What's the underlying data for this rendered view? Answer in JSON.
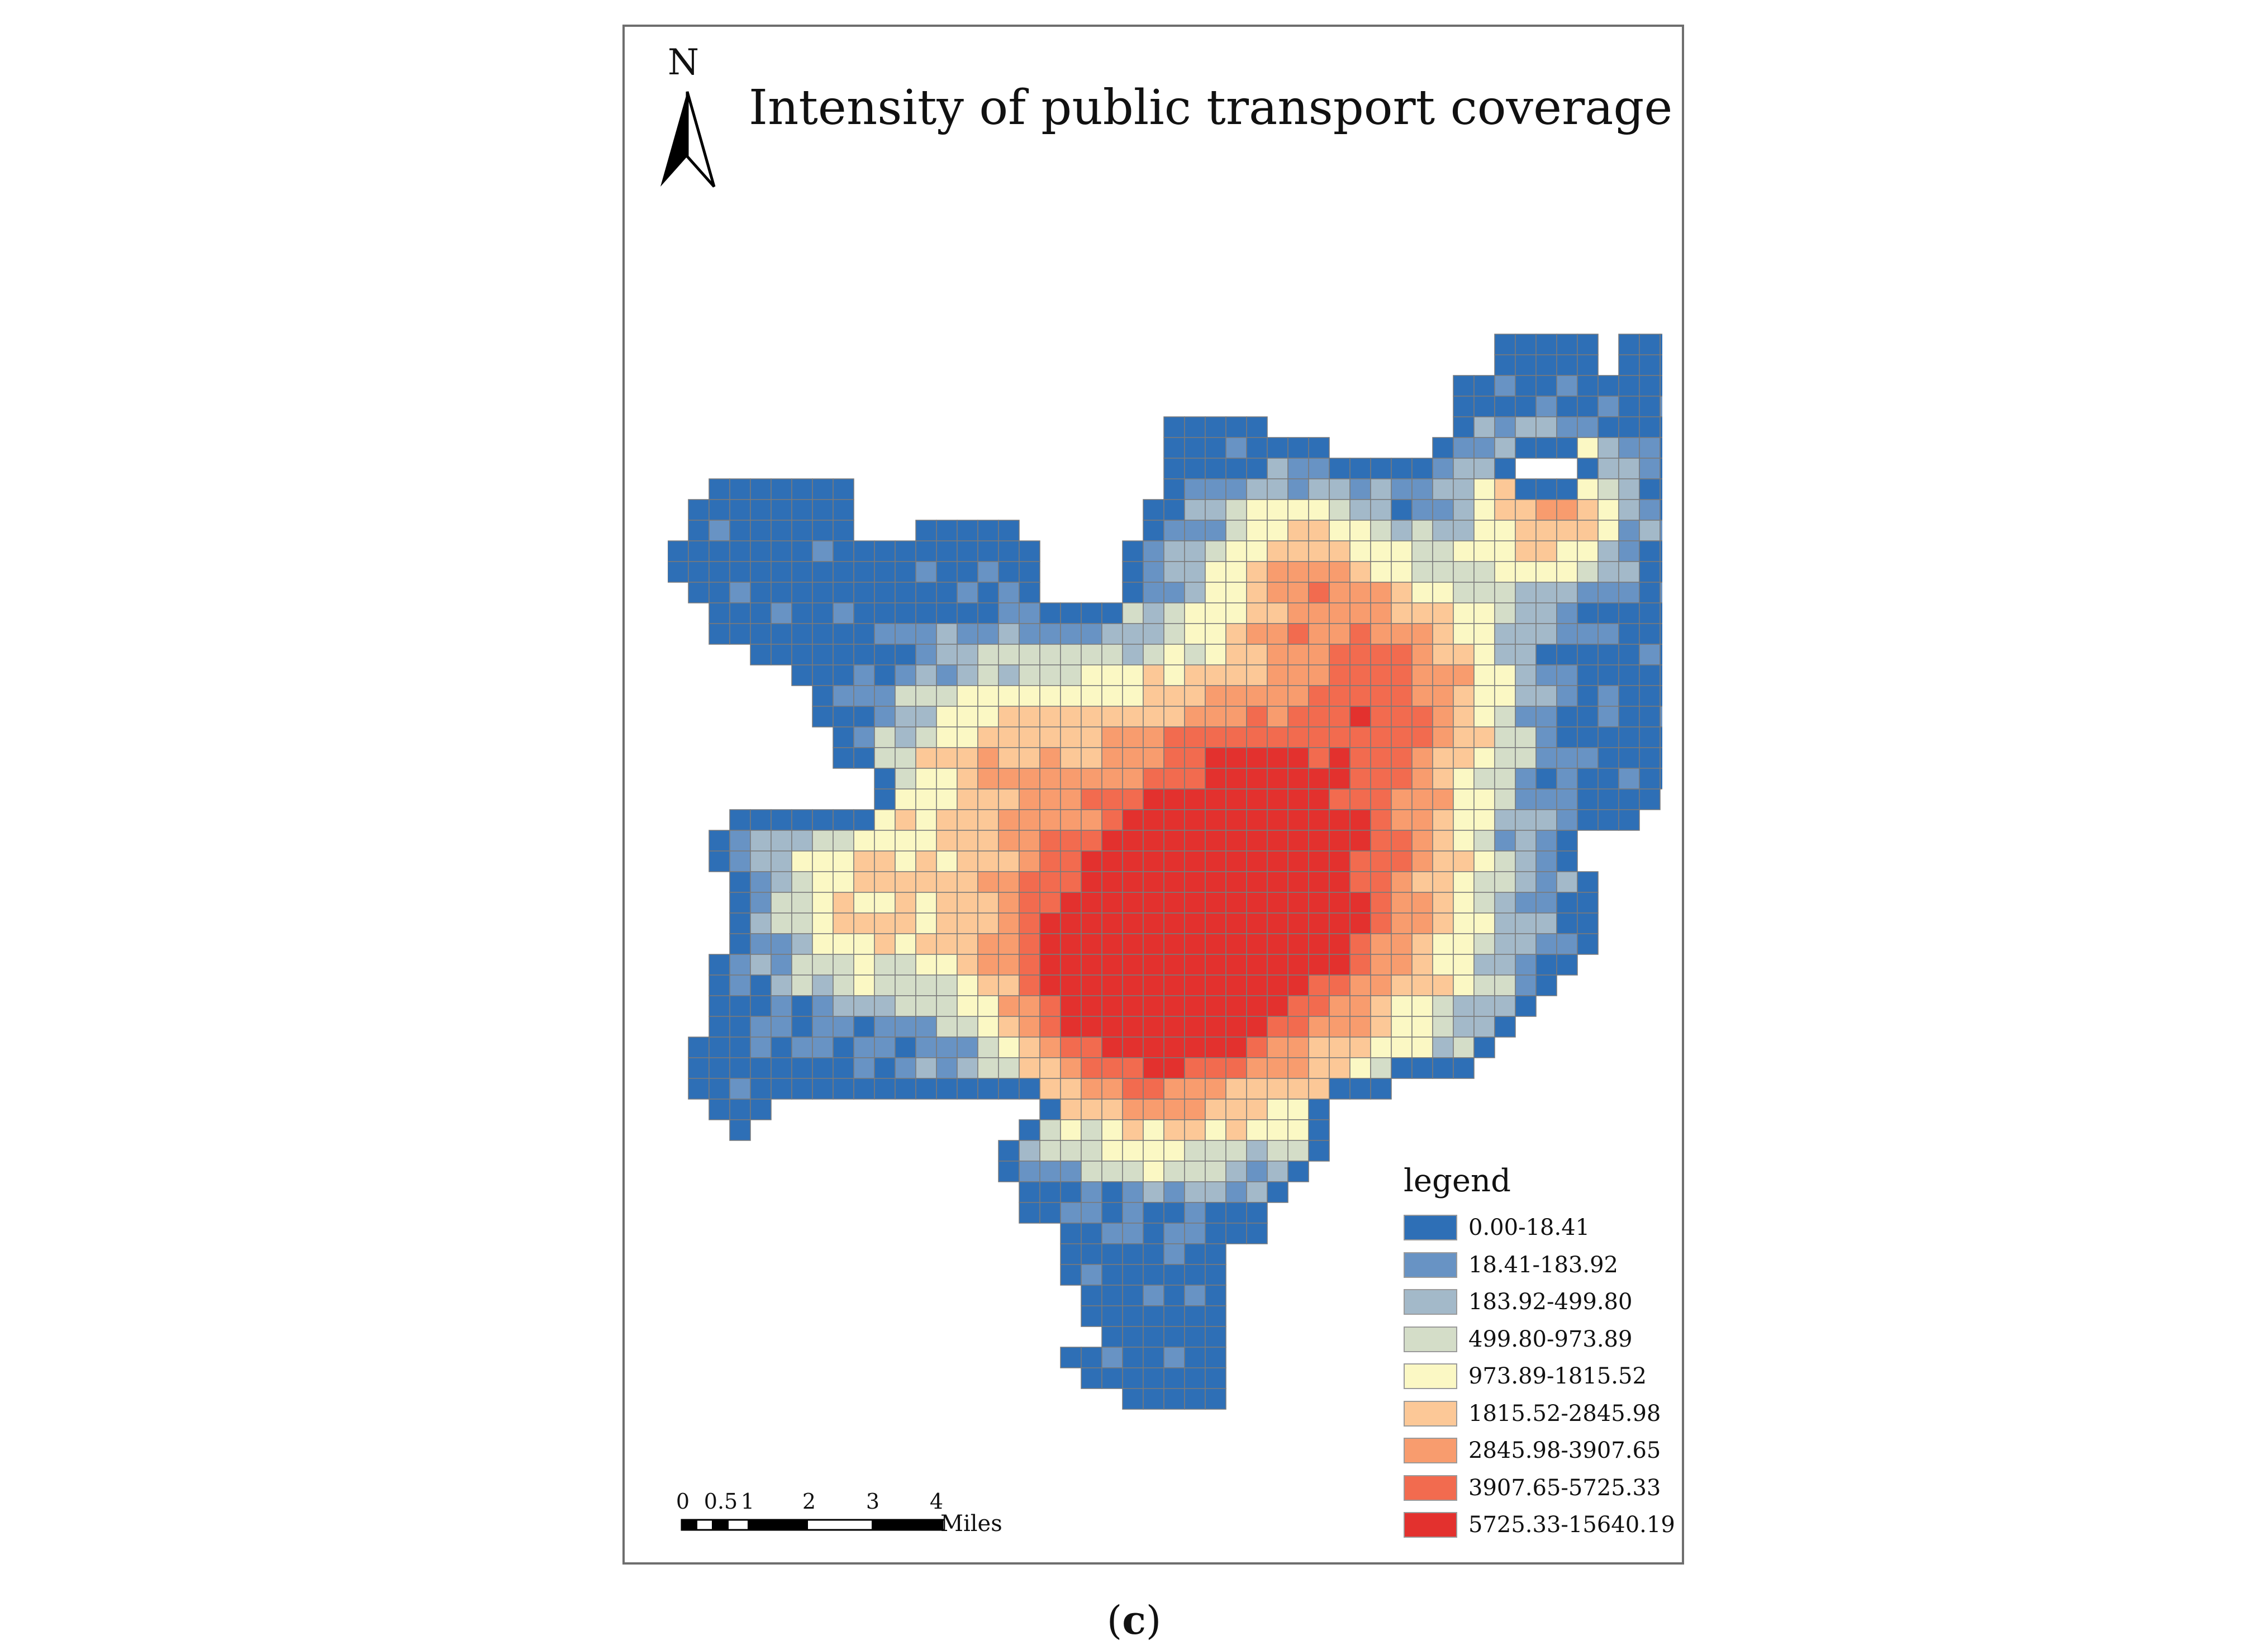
{
  "title": "Intensity of public transport coverage",
  "north_label": "N",
  "legend": {
    "title": "legend",
    "classes": [
      {
        "label": "0.00-18.41",
        "color": "#2e6fb6"
      },
      {
        "label": "18.41-183.92",
        "color": "#6893c4"
      },
      {
        "label": "183.92-499.80",
        "color": "#a3b9c9"
      },
      {
        "label": "499.80-973.89",
        "color": "#d4ddc8"
      },
      {
        "label": "973.89-1815.52",
        "color": "#fbf8c4"
      },
      {
        "label": "1815.52-2845.98",
        "color": "#fcc897"
      },
      {
        "label": "2845.98-3907.65",
        "color": "#f89c6e"
      },
      {
        "label": "3907.65-5725.33",
        "color": "#f26b4f"
      },
      {
        "label": "5725.33-15640.19",
        "color": "#e3312e"
      }
    ]
  },
  "scale_bar": {
    "ticks": [
      "0",
      "0.5",
      "1",
      "2",
      "3",
      "4"
    ],
    "unit": "Miles"
  },
  "caption": {
    "open": "(",
    "letter": "c",
    "close": ")"
  }
}
